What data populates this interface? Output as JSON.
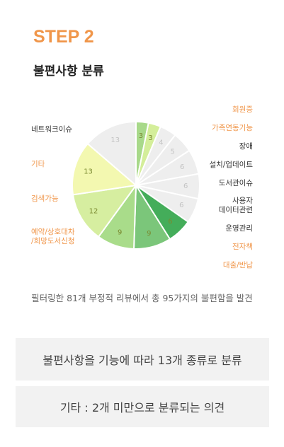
{
  "header": {
    "step": "STEP 2",
    "title": "불편사항 분류"
  },
  "chart_data": {
    "type": "pie",
    "categories": [
      "회원증",
      "가족연동기능",
      "장애",
      "설치/업데이트",
      "도서관이슈",
      "사용자\n데이터관련",
      "운영관리",
      "전자책",
      "대출/반납",
      "예약/상호대차\n/희망도서신청",
      "검색가능",
      "기타",
      "네트워크이슈"
    ],
    "values": [
      3,
      3,
      4,
      5,
      6,
      6,
      6,
      6,
      9,
      9,
      12,
      13,
      13
    ],
    "colors": [
      "#a8d98a",
      "#d4ee9a",
      "#eeeeee",
      "#eeeeee",
      "#eeeeee",
      "#eeeeee",
      "#eeeeee",
      "#44ad5a",
      "#7bc67a",
      "#a9dc8a",
      "#d6eea0",
      "#f3f8b0",
      "#eeeeee"
    ],
    "highlight": [
      true,
      true,
      false,
      false,
      false,
      false,
      false,
      true,
      true,
      true,
      true,
      true,
      false
    ]
  },
  "caption": "필터링한 81개 부정적 리뷰에서 총 95가지의 불편함을 발견",
  "notes": [
    "불편사항을 기능에 따라 13개 종류로 분류",
    "기타 : 2개 미만으로 분류되는 의견"
  ]
}
